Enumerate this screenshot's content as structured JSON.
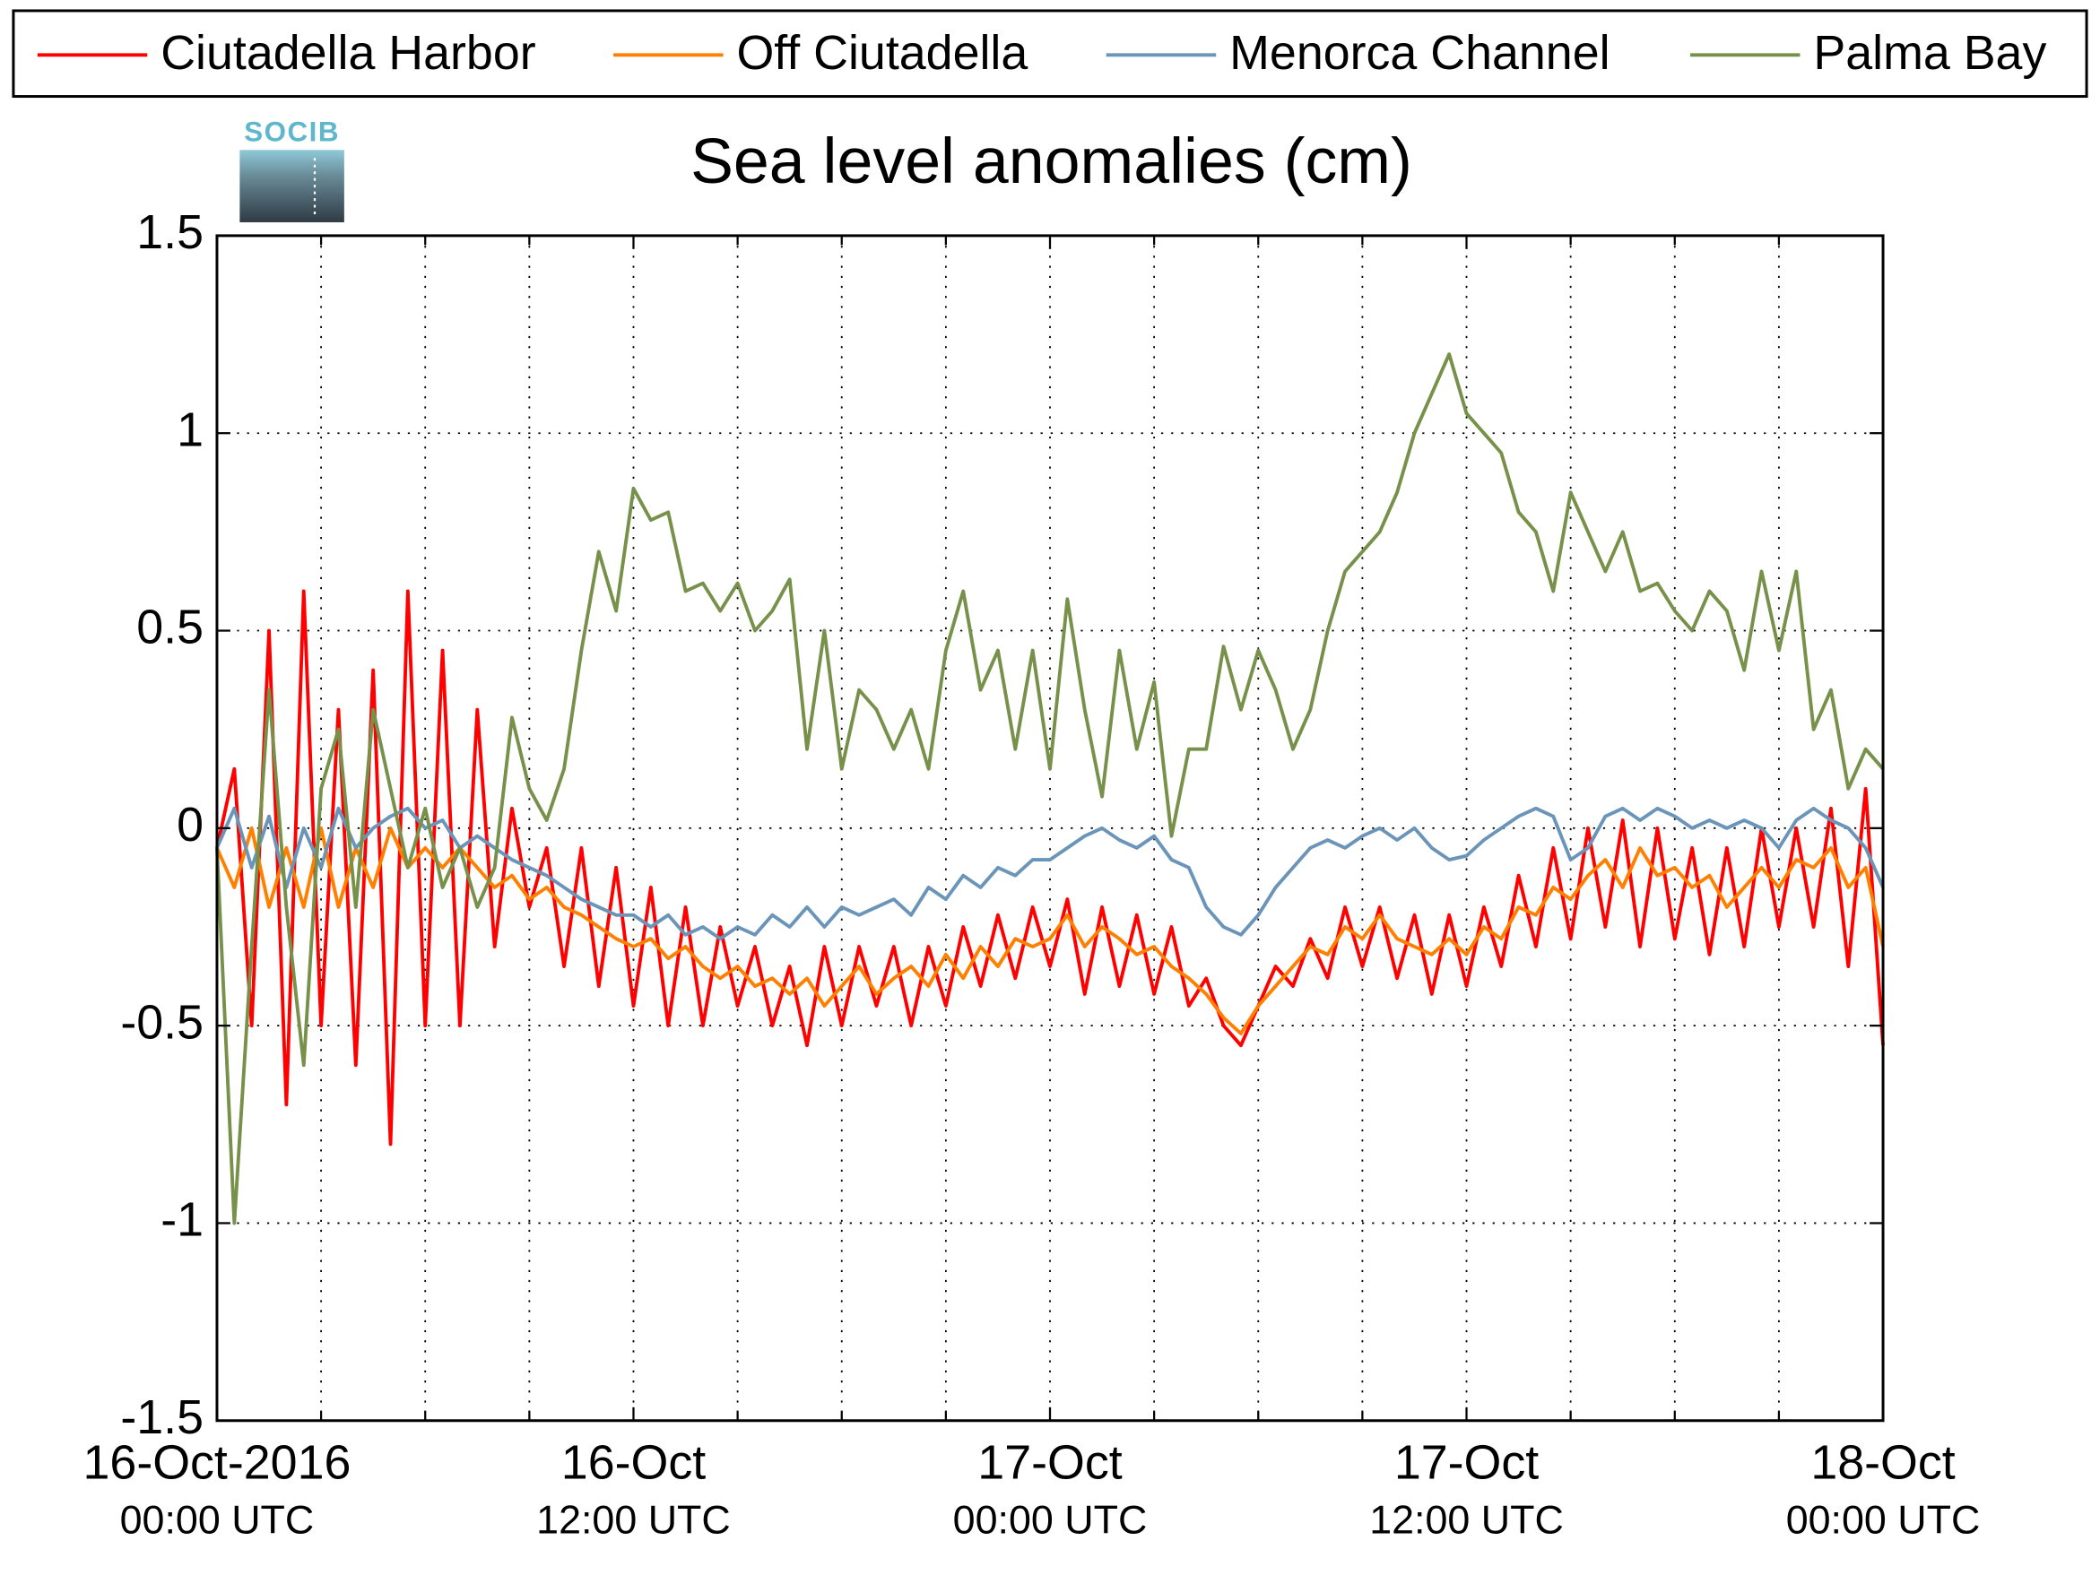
{
  "chart_data": {
    "type": "line",
    "title": "Sea level anomalies (cm)",
    "logo_text": "SOCIB",
    "legend": "top-outside",
    "grid": true,
    "x": [
      0,
      0.5,
      1,
      1.5,
      2,
      2.5,
      3,
      3.5,
      4,
      4.5,
      5,
      5.5,
      6,
      6.5,
      7,
      7.5,
      8,
      8.5,
      9,
      9.5,
      10,
      10.5,
      11,
      11.5,
      12,
      12.5,
      13,
      13.5,
      14,
      14.5,
      15,
      15.5,
      16,
      16.5,
      17,
      17.5,
      18,
      18.5,
      19,
      19.5,
      20,
      20.5,
      21,
      21.5,
      22,
      22.5,
      23,
      23.5,
      24,
      24.5,
      25,
      25.5,
      26,
      26.5,
      27,
      27.5,
      28,
      28.5,
      29,
      29.5,
      30,
      30.5,
      31,
      31.5,
      32,
      32.5,
      33,
      33.5,
      34,
      34.5,
      35,
      35.5,
      36,
      36.5,
      37,
      37.5,
      38,
      38.5,
      39,
      39.5,
      40,
      40.5,
      41,
      41.5,
      42,
      42.5,
      43,
      43.5,
      44,
      44.5,
      45,
      45.5,
      46,
      46.5,
      47,
      47.5,
      48
    ],
    "xlim": [
      0,
      48
    ],
    "xticks": [
      {
        "value": 0,
        "label": [
          "16-Oct-2016",
          "00:00 UTC"
        ]
      },
      {
        "value": 12,
        "label": [
          "16-Oct",
          "12:00 UTC"
        ]
      },
      {
        "value": 24,
        "label": [
          "17-Oct",
          "00:00 UTC"
        ]
      },
      {
        "value": 36,
        "label": [
          "17-Oct",
          "12:00 UTC"
        ]
      },
      {
        "value": 48,
        "label": [
          "18-Oct",
          "00:00 UTC"
        ]
      }
    ],
    "xminorticks": [
      3,
      6,
      9,
      15,
      18,
      21,
      27,
      30,
      33,
      39,
      42,
      45
    ],
    "ylim": [
      -1.5,
      1.5
    ],
    "yticks": [
      -1.5,
      -1,
      -0.5,
      0,
      0.5,
      1,
      1.5
    ],
    "series": [
      {
        "name": "Ciutadella Harbor",
        "color": "#ff0000",
        "values": [
          -0.05,
          0.15,
          -0.5,
          0.5,
          -0.7,
          0.6,
          -0.5,
          0.3,
          -0.6,
          0.4,
          -0.8,
          0.6,
          -0.5,
          0.45,
          -0.5,
          0.3,
          -0.3,
          0.05,
          -0.2,
          -0.05,
          -0.35,
          -0.05,
          -0.4,
          -0.1,
          -0.45,
          -0.15,
          -0.5,
          -0.2,
          -0.5,
          -0.25,
          -0.45,
          -0.3,
          -0.5,
          -0.35,
          -0.55,
          -0.3,
          -0.5,
          -0.3,
          -0.45,
          -0.3,
          -0.5,
          -0.3,
          -0.45,
          -0.25,
          -0.4,
          -0.22,
          -0.38,
          -0.2,
          -0.35,
          -0.18,
          -0.42,
          -0.2,
          -0.4,
          -0.22,
          -0.42,
          -0.25,
          -0.45,
          -0.38,
          -0.5,
          -0.55,
          -0.45,
          -0.35,
          -0.4,
          -0.28,
          -0.38,
          -0.2,
          -0.35,
          -0.2,
          -0.38,
          -0.22,
          -0.42,
          -0.22,
          -0.4,
          -0.2,
          -0.35,
          -0.12,
          -0.3,
          -0.05,
          -0.28,
          0,
          -0.25,
          0.02,
          -0.3,
          0,
          -0.28,
          -0.05,
          -0.32,
          -0.05,
          -0.3,
          0,
          -0.25,
          0,
          -0.25,
          0.05,
          -0.35,
          0.1,
          -0.55
        ]
      },
      {
        "name": "Off Ciutadella",
        "color": "#ff8000",
        "values": [
          -0.05,
          -0.15,
          0,
          -0.2,
          -0.05,
          -0.2,
          0,
          -0.2,
          -0.05,
          -0.15,
          0,
          -0.1,
          -0.05,
          -0.1,
          -0.05,
          -0.1,
          -0.15,
          -0.12,
          -0.18,
          -0.15,
          -0.2,
          -0.22,
          -0.25,
          -0.28,
          -0.3,
          -0.28,
          -0.33,
          -0.3,
          -0.35,
          -0.38,
          -0.35,
          -0.4,
          -0.38,
          -0.42,
          -0.38,
          -0.45,
          -0.4,
          -0.35,
          -0.42,
          -0.38,
          -0.35,
          -0.4,
          -0.32,
          -0.38,
          -0.3,
          -0.35,
          -0.28,
          -0.3,
          -0.28,
          -0.22,
          -0.3,
          -0.25,
          -0.28,
          -0.32,
          -0.3,
          -0.35,
          -0.38,
          -0.42,
          -0.48,
          -0.52,
          -0.45,
          -0.4,
          -0.35,
          -0.3,
          -0.32,
          -0.25,
          -0.28,
          -0.22,
          -0.28,
          -0.3,
          -0.32,
          -0.28,
          -0.32,
          -0.25,
          -0.28,
          -0.2,
          -0.22,
          -0.15,
          -0.18,
          -0.12,
          -0.08,
          -0.15,
          -0.05,
          -0.12,
          -0.1,
          -0.15,
          -0.12,
          -0.2,
          -0.15,
          -0.1,
          -0.15,
          -0.08,
          -0.1,
          -0.05,
          -0.15,
          -0.1,
          -0.3
        ]
      },
      {
        "name": "Menorca Channel",
        "color": "#6b95b8",
        "values": [
          -0.05,
          0.05,
          -0.1,
          0.03,
          -0.15,
          0,
          -0.1,
          0.05,
          -0.05,
          0,
          0.03,
          0.05,
          0,
          0.02,
          -0.05,
          -0.02,
          -0.05,
          -0.08,
          -0.1,
          -0.12,
          -0.15,
          -0.18,
          -0.2,
          -0.22,
          -0.22,
          -0.25,
          -0.22,
          -0.27,
          -0.25,
          -0.28,
          -0.25,
          -0.27,
          -0.22,
          -0.25,
          -0.2,
          -0.25,
          -0.2,
          -0.22,
          -0.2,
          -0.18,
          -0.22,
          -0.15,
          -0.18,
          -0.12,
          -0.15,
          -0.1,
          -0.12,
          -0.08,
          -0.08,
          -0.05,
          -0.02,
          0,
          -0.03,
          -0.05,
          -0.02,
          -0.08,
          -0.1,
          -0.2,
          -0.25,
          -0.27,
          -0.22,
          -0.15,
          -0.1,
          -0.05,
          -0.03,
          -0.05,
          -0.02,
          0,
          -0.03,
          0,
          -0.05,
          -0.08,
          -0.07,
          -0.03,
          0,
          0.03,
          0.05,
          0.03,
          -0.08,
          -0.05,
          0.03,
          0.05,
          0.02,
          0.05,
          0.03,
          0,
          0.02,
          0,
          0.02,
          0,
          -0.05,
          0.02,
          0.05,
          0.02,
          0,
          -0.05,
          -0.15
        ]
      },
      {
        "name": "Palma Bay",
        "color": "#77904a",
        "values": [
          -0.05,
          -1,
          -0.3,
          0.35,
          -0.2,
          -0.6,
          0.1,
          0.25,
          -0.2,
          0.3,
          0.1,
          -0.1,
          0.05,
          -0.15,
          -0.05,
          -0.2,
          -0.1,
          0.28,
          0.1,
          0.02,
          0.15,
          0.45,
          0.7,
          0.55,
          0.86,
          0.78,
          0.8,
          0.6,
          0.62,
          0.55,
          0.62,
          0.5,
          0.55,
          0.63,
          0.2,
          0.5,
          0.15,
          0.35,
          0.3,
          0.2,
          0.3,
          0.15,
          0.45,
          0.6,
          0.35,
          0.45,
          0.2,
          0.45,
          0.15,
          0.58,
          0.3,
          0.08,
          0.45,
          0.2,
          0.37,
          -0.02,
          0.2,
          0.2,
          0.46,
          0.3,
          0.45,
          0.35,
          0.2,
          0.3,
          0.5,
          0.65,
          0.7,
          0.75,
          0.85,
          1,
          1.1,
          1.2,
          1.05,
          1,
          0.95,
          0.8,
          0.75,
          0.6,
          0.85,
          0.75,
          0.65,
          0.75,
          0.6,
          0.62,
          0.55,
          0.5,
          0.6,
          0.55,
          0.4,
          0.65,
          0.45,
          0.65,
          0.25,
          0.35,
          0.1,
          0.2,
          0.15
        ]
      }
    ]
  }
}
